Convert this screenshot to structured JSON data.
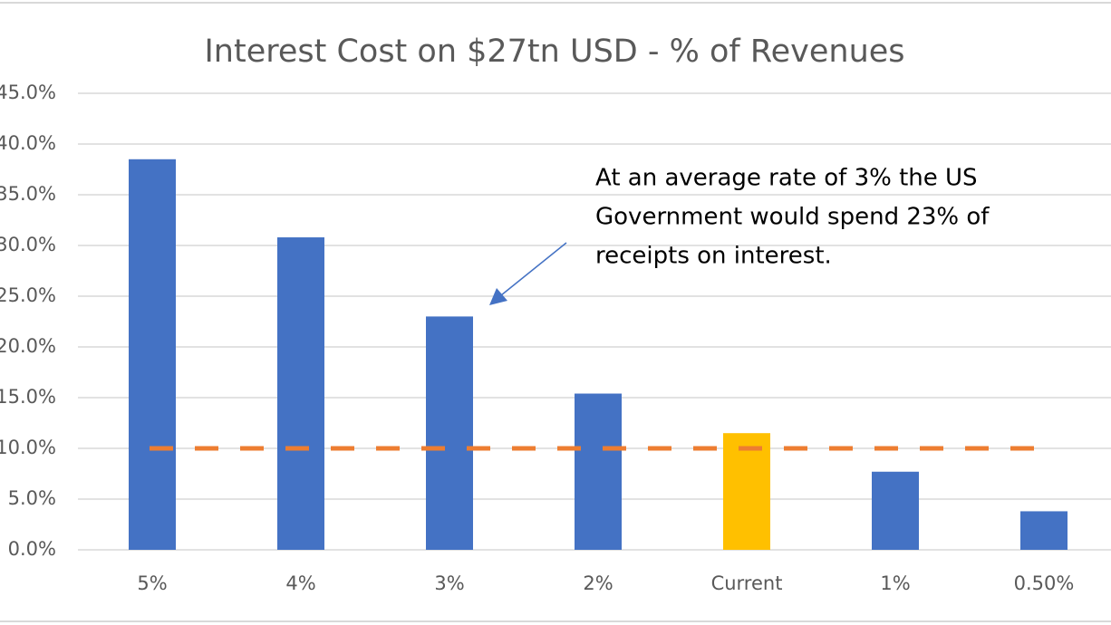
{
  "chart_data": {
    "type": "bar",
    "title": "Interest Cost on $27tn USD - % of Revenues",
    "categories": [
      "5%",
      "4%",
      "3%",
      "2%",
      "Current",
      "1%",
      "0.50%"
    ],
    "values": [
      38.5,
      30.8,
      23.0,
      15.4,
      11.5,
      7.7,
      3.8
    ],
    "colors": [
      "#4472c4",
      "#4472c4",
      "#4472c4",
      "#4472c4",
      "#ffc000",
      "#4472c4",
      "#4472c4"
    ],
    "reference_line": {
      "value": 10.0,
      "color": "#ed7d31"
    },
    "annotation": [
      "At an average rate of 3% the US",
      "Government would spend 23% of",
      "receipts on interest."
    ],
    "ylim": [
      0,
      45
    ],
    "yticks": [
      {
        "value": 0,
        "label": "0.0%"
      },
      {
        "value": 5,
        "label": "5.0%"
      },
      {
        "value": 10,
        "label": "10.0%"
      },
      {
        "value": 15,
        "label": "15.0%"
      },
      {
        "value": 20,
        "label": "20.0%"
      },
      {
        "value": 25,
        "label": "25.0%"
      },
      {
        "value": 30,
        "label": "30.0%"
      },
      {
        "value": 35,
        "label": "35.0%"
      },
      {
        "value": 40,
        "label": "40.0%"
      },
      {
        "value": 45,
        "label": "45.0%"
      }
    ],
    "grid": true
  }
}
